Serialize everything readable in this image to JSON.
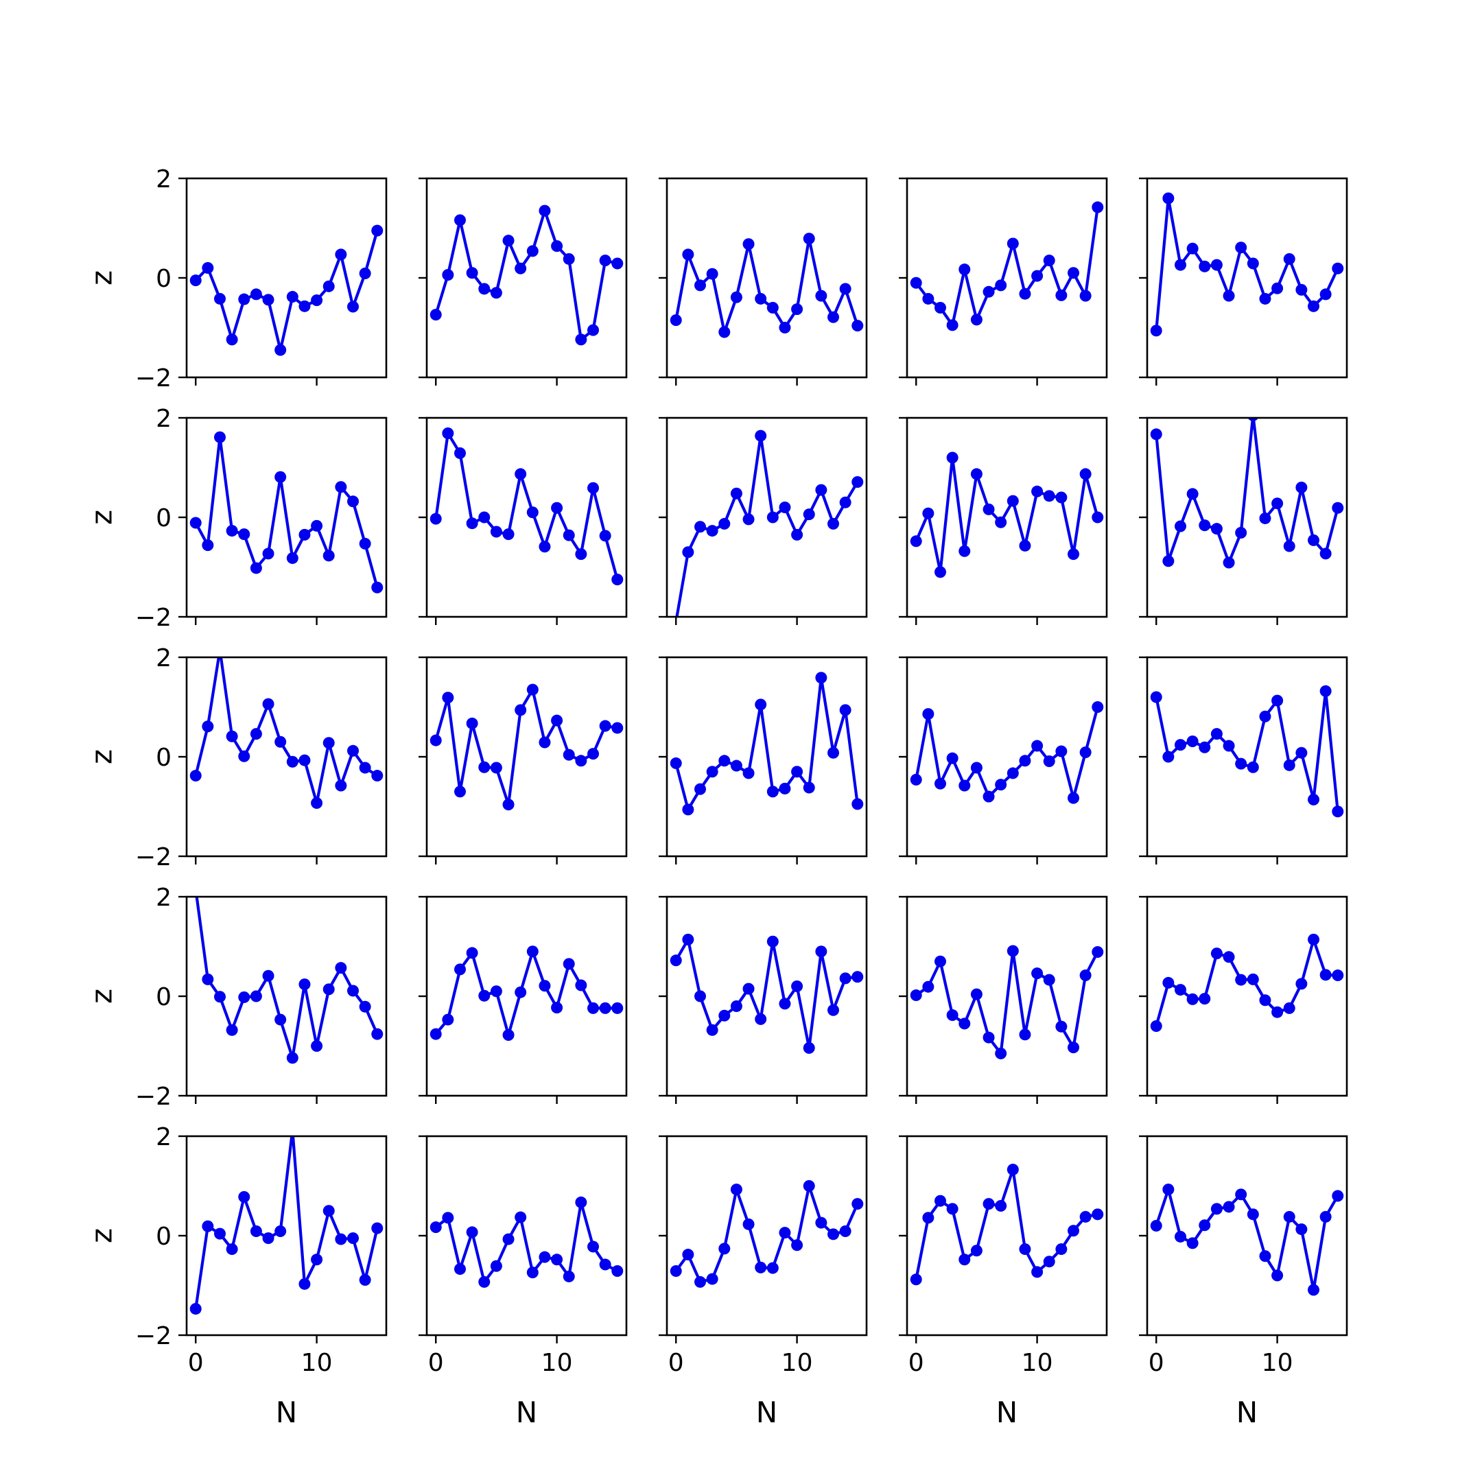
{
  "chart_data": {
    "type": "line",
    "layout": {
      "rows": 5,
      "cols": 5,
      "sharex": true,
      "sharey": true
    },
    "xlabel": "N",
    "ylabel": "z",
    "xlim": [
      -0.75,
      15.75
    ],
    "ylim": [
      -2,
      2
    ],
    "xticks": [
      0,
      10
    ],
    "xtick_labels": [
      "0",
      "10"
    ],
    "yticks": [
      -2,
      0,
      2
    ],
    "ytick_labels": [
      "−2",
      "0",
      "2"
    ],
    "grid": false,
    "legend": "none",
    "line_color": "#0000ee",
    "x": [
      0,
      1,
      2,
      3,
      4,
      5,
      6,
      7,
      8,
      9,
      10,
      11,
      12,
      13,
      14,
      15
    ],
    "panels": [
      {
        "values": [
          -0.05,
          0.2,
          -0.42,
          -1.24,
          -0.43,
          -0.33,
          -0.44,
          -1.45,
          -0.38,
          -0.57,
          -0.45,
          -0.17,
          0.47,
          -0.58,
          0.09,
          0.95
        ]
      },
      {
        "values": [
          -0.74,
          0.06,
          1.16,
          0.1,
          -0.22,
          -0.3,
          0.75,
          0.19,
          0.54,
          1.35,
          0.64,
          0.38,
          -1.24,
          -1.05,
          0.35,
          0.29
        ]
      },
      {
        "values": [
          -0.85,
          0.47,
          -0.15,
          0.08,
          -1.09,
          -0.39,
          0.68,
          -0.42,
          -0.6,
          -1.0,
          -0.63,
          0.79,
          -0.36,
          -0.79,
          -0.22,
          -0.96
        ]
      },
      {
        "values": [
          -0.1,
          -0.42,
          -0.6,
          -0.95,
          0.17,
          -0.84,
          -0.28,
          -0.15,
          0.69,
          -0.32,
          0.04,
          0.35,
          -0.35,
          0.1,
          -0.36,
          1.42
        ]
      },
      {
        "values": [
          -1.06,
          1.6,
          0.26,
          0.59,
          0.23,
          0.26,
          -0.36,
          0.61,
          0.29,
          -0.42,
          -0.21,
          0.38,
          -0.24,
          -0.57,
          -0.33,
          0.19
        ]
      },
      {
        "values": [
          -0.11,
          -0.56,
          1.61,
          -0.27,
          -0.34,
          -1.02,
          -0.73,
          0.81,
          -0.82,
          -0.35,
          -0.17,
          -0.77,
          0.61,
          0.32,
          -0.53,
          -1.41
        ]
      },
      {
        "values": [
          -0.03,
          1.69,
          1.29,
          -0.12,
          0.0,
          -0.29,
          -0.34,
          0.87,
          0.1,
          -0.59,
          0.19,
          -0.36,
          -0.74,
          0.59,
          -0.37,
          -1.25
        ]
      },
      {
        "values": [
          -2.1,
          -0.7,
          -0.19,
          -0.27,
          -0.13,
          0.48,
          -0.04,
          1.64,
          0.0,
          0.2,
          -0.35,
          0.06,
          0.55,
          -0.13,
          0.3,
          0.71
        ]
      },
      {
        "values": [
          -0.48,
          0.08,
          -1.1,
          1.2,
          -0.68,
          0.87,
          0.16,
          -0.1,
          0.33,
          -0.57,
          0.52,
          0.43,
          0.4,
          -0.74,
          0.87,
          0.0
        ]
      },
      {
        "values": [
          1.67,
          -0.88,
          -0.18,
          0.47,
          -0.16,
          -0.23,
          -0.91,
          -0.31,
          2.05,
          -0.02,
          0.28,
          -0.58,
          0.6,
          -0.46,
          -0.73,
          0.19
        ]
      },
      {
        "values": [
          -0.38,
          0.61,
          2.15,
          0.41,
          0.01,
          0.46,
          1.06,
          0.3,
          -0.1,
          -0.07,
          -0.93,
          0.28,
          -0.58,
          0.12,
          -0.22,
          -0.38
        ]
      },
      {
        "values": [
          0.33,
          1.19,
          -0.7,
          0.67,
          -0.21,
          -0.22,
          -0.96,
          0.94,
          1.35,
          0.29,
          0.73,
          0.04,
          -0.08,
          0.06,
          0.62,
          0.58
        ]
      },
      {
        "values": [
          -0.13,
          -1.06,
          -0.65,
          -0.3,
          -0.08,
          -0.18,
          -0.33,
          1.05,
          -0.7,
          -0.64,
          -0.3,
          -0.62,
          1.59,
          0.08,
          0.94,
          -0.95
        ]
      },
      {
        "values": [
          -0.46,
          0.86,
          -0.54,
          -0.03,
          -0.58,
          -0.22,
          -0.8,
          -0.56,
          -0.33,
          -0.08,
          0.22,
          -0.09,
          0.11,
          -0.83,
          0.09,
          1.0
        ]
      },
      {
        "values": [
          1.2,
          0.0,
          0.24,
          0.31,
          0.19,
          0.46,
          0.22,
          -0.14,
          -0.21,
          0.81,
          1.13,
          -0.17,
          0.08,
          -0.86,
          1.32,
          -1.1
        ]
      },
      {
        "values": [
          2.15,
          0.34,
          -0.01,
          -0.68,
          -0.02,
          0.0,
          0.41,
          -0.47,
          -1.24,
          0.24,
          -1.0,
          0.14,
          0.57,
          0.11,
          -0.21,
          -0.76
        ]
      },
      {
        "values": [
          -0.76,
          -0.47,
          0.54,
          0.87,
          0.01,
          0.1,
          -0.78,
          0.08,
          0.9,
          0.21,
          -0.23,
          0.65,
          0.22,
          -0.24,
          -0.24,
          -0.24
        ]
      },
      {
        "values": [
          0.72,
          1.14,
          0.0,
          -0.68,
          -0.39,
          -0.2,
          0.15,
          -0.46,
          1.1,
          -0.15,
          0.2,
          -1.04,
          0.9,
          -0.28,
          0.36,
          0.39
        ]
      },
      {
        "values": [
          0.02,
          0.19,
          0.7,
          -0.38,
          -0.55,
          0.04,
          -0.83,
          -1.15,
          0.91,
          -0.77,
          0.46,
          0.33,
          -0.61,
          -1.03,
          0.42,
          0.89
        ]
      },
      {
        "values": [
          -0.6,
          0.27,
          0.13,
          -0.06,
          -0.05,
          0.86,
          0.79,
          0.33,
          0.34,
          -0.08,
          -0.32,
          -0.24,
          0.25,
          1.14,
          0.43,
          0.42
        ]
      },
      {
        "values": [
          -1.47,
          0.19,
          0.04,
          -0.27,
          0.78,
          0.09,
          -0.05,
          0.09,
          2.12,
          -0.97,
          -0.48,
          0.5,
          -0.07,
          -0.05,
          -0.89,
          0.15
        ]
      },
      {
        "values": [
          0.17,
          0.36,
          -0.67,
          0.07,
          -0.93,
          -0.61,
          -0.07,
          0.37,
          -0.74,
          -0.43,
          -0.48,
          -0.82,
          0.67,
          -0.22,
          -0.58,
          -0.71
        ]
      },
      {
        "values": [
          -0.71,
          -0.38,
          -0.93,
          -0.87,
          -0.26,
          0.93,
          0.23,
          -0.64,
          -0.65,
          0.06,
          -0.19,
          1.0,
          0.26,
          0.03,
          0.09,
          0.64
        ]
      },
      {
        "values": [
          -0.88,
          0.36,
          0.7,
          0.54,
          -0.48,
          -0.3,
          0.64,
          0.6,
          1.33,
          -0.27,
          -0.73,
          -0.52,
          -0.27,
          0.1,
          0.38,
          0.43
        ]
      },
      {
        "values": [
          0.2,
          0.93,
          -0.02,
          -0.15,
          0.21,
          0.54,
          0.58,
          0.83,
          0.43,
          -0.41,
          -0.8,
          0.38,
          0.13,
          -1.09,
          0.38,
          0.8
        ]
      }
    ]
  }
}
